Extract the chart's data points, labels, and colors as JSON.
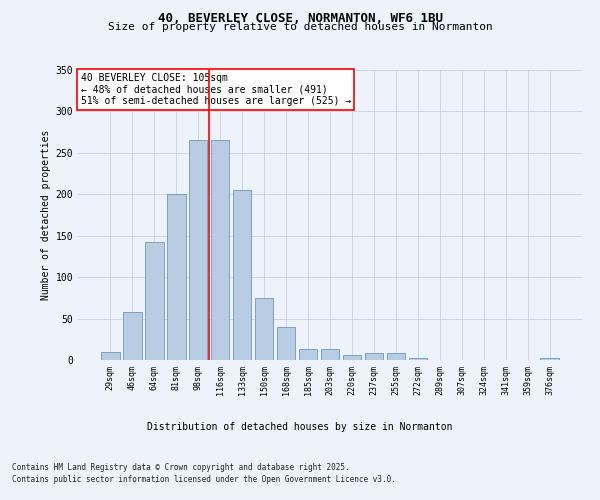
{
  "title_line1": "40, BEVERLEY CLOSE, NORMANTON, WF6 1BU",
  "title_line2": "Size of property relative to detached houses in Normanton",
  "xlabel": "Distribution of detached houses by size in Normanton",
  "ylabel": "Number of detached properties",
  "categories": [
    "29sqm",
    "46sqm",
    "64sqm",
    "81sqm",
    "98sqm",
    "116sqm",
    "133sqm",
    "150sqm",
    "168sqm",
    "185sqm",
    "203sqm",
    "220sqm",
    "237sqm",
    "255sqm",
    "272sqm",
    "289sqm",
    "307sqm",
    "324sqm",
    "341sqm",
    "359sqm",
    "376sqm"
  ],
  "values": [
    10,
    58,
    143,
    200,
    265,
    265,
    205,
    75,
    40,
    13,
    13,
    6,
    8,
    8,
    3,
    0,
    0,
    0,
    0,
    0,
    2
  ],
  "bar_color": "#b8cce4",
  "bar_edge_color": "#5a8ab5",
  "vline_x": 4.5,
  "vline_color": "red",
  "ylim": [
    0,
    350
  ],
  "yticks": [
    0,
    50,
    100,
    150,
    200,
    250,
    300,
    350
  ],
  "annotation_title": "40 BEVERLEY CLOSE: 105sqm",
  "annotation_line1": "← 48% of detached houses are smaller (491)",
  "annotation_line2": "51% of semi-detached houses are larger (525) →",
  "annotation_box_color": "white",
  "annotation_box_edge_color": "red",
  "footer_line1": "Contains HM Land Registry data © Crown copyright and database right 2025.",
  "footer_line2": "Contains public sector information licensed under the Open Government Licence v3.0.",
  "background_color": "#eef2fa",
  "grid_color": "#c8d0e0",
  "title1_fontsize": 9,
  "title2_fontsize": 8,
  "ylabel_fontsize": 7,
  "xtick_fontsize": 6,
  "ytick_fontsize": 7,
  "ann_fontsize": 7,
  "footer_fontsize": 5.5,
  "xlabel_fontsize": 7
}
